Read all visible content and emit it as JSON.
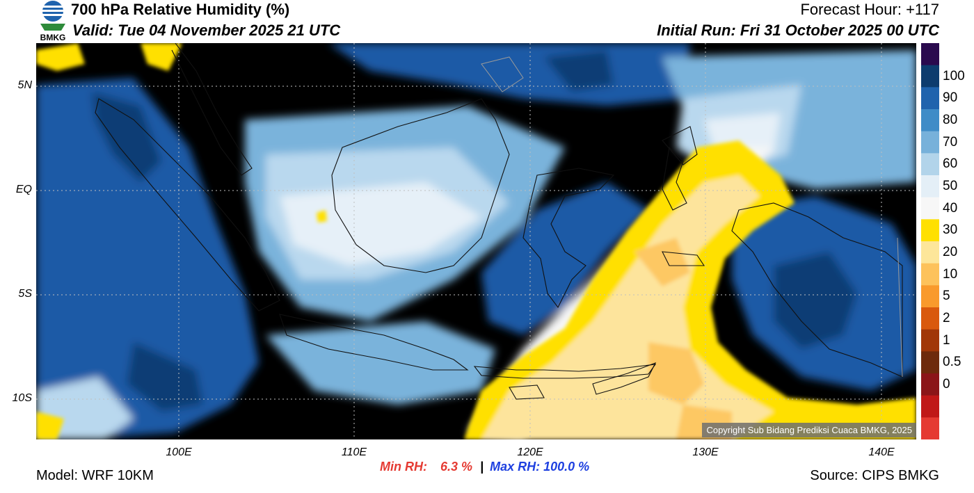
{
  "header": {
    "title": "700 hPa Relative Humidity (%)",
    "valid": "Valid: Tue 04 November 2025 21 UTC",
    "forecast_hour": "Forecast Hour: +117",
    "initial_run": "Initial Run: Fri 31 October 2025 00 UTC"
  },
  "logo": {
    "text": "BMKG"
  },
  "axes": {
    "lat_labels": [
      "5N",
      "EQ",
      "5S",
      "10S"
    ],
    "lon_labels": [
      "100E",
      "110E",
      "120E",
      "130E",
      "140E"
    ]
  },
  "colorbar": {
    "labels": [
      "100",
      "90",
      "80",
      "70",
      "60",
      "50",
      "40",
      "30",
      "20",
      "10",
      "5",
      "2",
      "1",
      "0.5",
      "0"
    ],
    "colors": [
      "#2a0a4e",
      "#0d3c6e",
      "#1f63ad",
      "#3f8cc7",
      "#77b1da",
      "#b2d4ea",
      "#e4eff7",
      "#f7f7f7",
      "#ffe000",
      "#fde69a",
      "#fdc25b",
      "#f99a2c",
      "#d9590d",
      "#a13708",
      "#6e2a0c",
      "#8b1518",
      "#c01818",
      "#e53a32"
    ]
  },
  "stats": {
    "min_label": "Min RH:",
    "min_value": "6.3 %",
    "separator": "|",
    "max_label": "Max RH: 100.0 %"
  },
  "footer": {
    "model": "Model: WRF 10KM",
    "source": "Source: CIPS BMKG"
  },
  "copyright": "Copyright Sub Bidang Prediksi Cuaca BMKG, 2025",
  "palette": {
    "sea_base": "#5596cc",
    "dark": "#1a5aa6",
    "darkest": "#0f3d75",
    "mid": "#7ab3db",
    "light": "#b9d8ee",
    "pale": "#e6f0f8",
    "white": "#f7f7f7",
    "yellow": "#ffe000",
    "yellow_pale": "#fde49c",
    "orange": "#fdc864",
    "coast": "#111111",
    "border": "#9a9a9a"
  }
}
